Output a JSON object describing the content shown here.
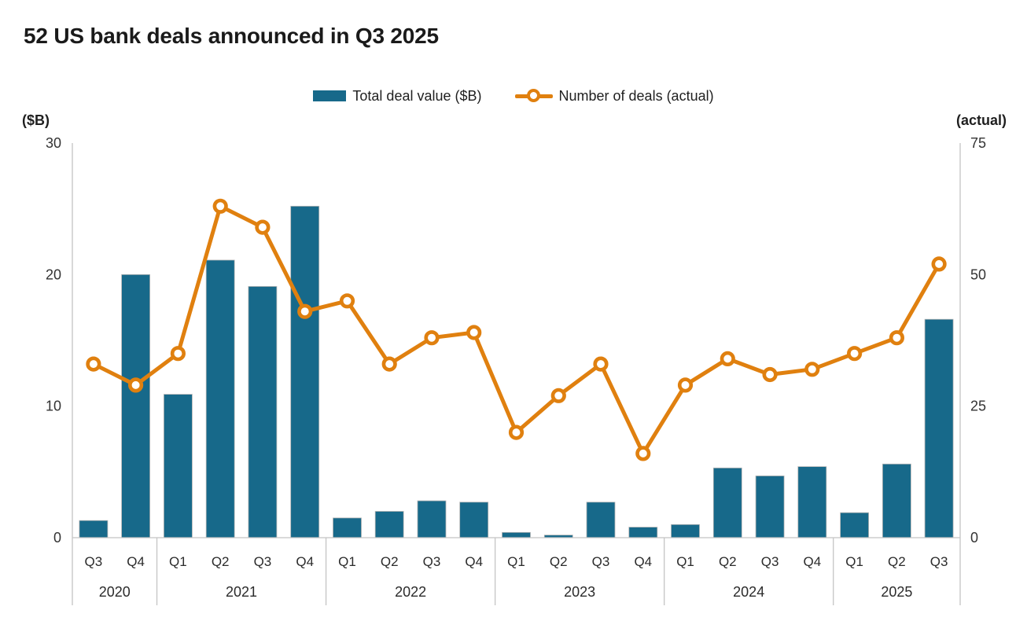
{
  "title": "52 US bank deals announced in Q3 2025",
  "legend": {
    "bar_label": "Total deal value ($B)",
    "line_label": "Number of deals (actual)"
  },
  "colors": {
    "bar": "#17698A",
    "bar_outline": "#b3b3b3",
    "line": "#E0800F",
    "marker_fill": "#ffffff",
    "axis": "#c4c4c4",
    "tick_text": "#333333",
    "label_text": "#2b2b2b"
  },
  "chart_data": {
    "type": "combo-bar-line",
    "quarters": [
      "Q3",
      "Q4",
      "Q1",
      "Q2",
      "Q3",
      "Q4",
      "Q1",
      "Q2",
      "Q3",
      "Q4",
      "Q1",
      "Q2",
      "Q3",
      "Q4",
      "Q1",
      "Q2",
      "Q3",
      "Q4",
      "Q1",
      "Q2",
      "Q3"
    ],
    "year_groups": [
      {
        "label": "2020",
        "quarters": 2
      },
      {
        "label": "2021",
        "quarters": 4
      },
      {
        "label": "2022",
        "quarters": 4
      },
      {
        "label": "2023",
        "quarters": 4
      },
      {
        "label": "2024",
        "quarters": 4
      },
      {
        "label": "2025",
        "quarters": 3
      }
    ],
    "series": [
      {
        "name": "Total deal value ($B)",
        "type": "bar",
        "axis": "left",
        "values": [
          1.3,
          20.0,
          10.9,
          21.1,
          19.1,
          25.2,
          1.5,
          2.0,
          2.8,
          2.7,
          0.4,
          0.2,
          2.7,
          0.8,
          1.0,
          5.3,
          4.7,
          5.4,
          1.9,
          5.6,
          16.6
        ]
      },
      {
        "name": "Number of deals (actual)",
        "type": "line",
        "axis": "right",
        "values": [
          33,
          29,
          35,
          63,
          59,
          43,
          45,
          33,
          38,
          39,
          20,
          27,
          33,
          16,
          29,
          34,
          31,
          32,
          35,
          38,
          52
        ]
      }
    ],
    "left_axis": {
      "title": "($B)",
      "range": [
        0,
        30
      ],
      "ticks": [
        30,
        20,
        10,
        0
      ]
    },
    "right_axis": {
      "title": "(actual)",
      "range": [
        0,
        75
      ],
      "ticks": [
        75,
        50,
        25,
        0
      ]
    },
    "grid": "off",
    "legend_position": "top-center"
  }
}
